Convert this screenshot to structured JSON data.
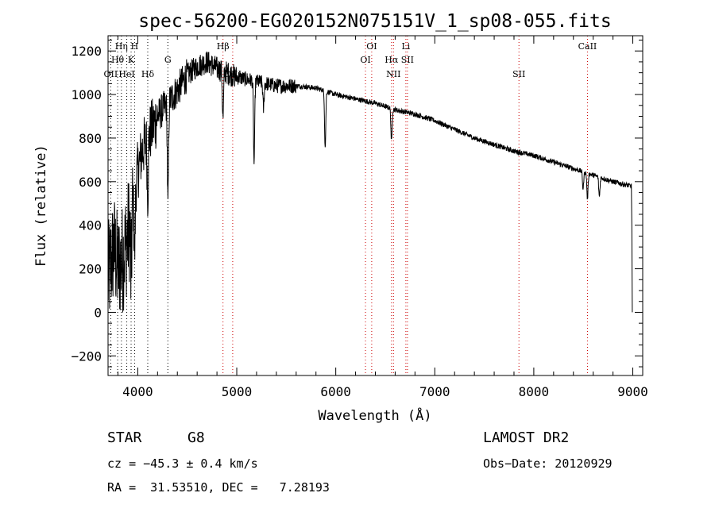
{
  "chart_data": {
    "type": "line",
    "title": "spec-56200-EG020152N075151V_1_sp08-055.fits",
    "xlabel": "Wavelength (Å)",
    "ylabel": "Flux (relative)",
    "xlim": [
      3700,
      9100
    ],
    "ylim": [
      -290,
      1270
    ],
    "xticks": [
      4000,
      5000,
      6000,
      7000,
      8000,
      9000
    ],
    "yticks": [
      -200,
      0,
      200,
      400,
      600,
      800,
      1000,
      1200
    ],
    "spectrum_anchor_points": [
      [
        3700,
        150
      ],
      [
        3760,
        300
      ],
      [
        3800,
        200
      ],
      [
        3850,
        250
      ],
      [
        3900,
        350
      ],
      [
        3950,
        500
      ],
      [
        4000,
        650
      ],
      [
        4050,
        750
      ],
      [
        4100,
        800
      ],
      [
        4150,
        850
      ],
      [
        4200,
        900
      ],
      [
        4300,
        960
      ],
      [
        4400,
        1020
      ],
      [
        4500,
        1090
      ],
      [
        4600,
        1130
      ],
      [
        4700,
        1150
      ],
      [
        4800,
        1120
      ],
      [
        4900,
        1100
      ],
      [
        5000,
        1080
      ],
      [
        5200,
        1060
      ],
      [
        5400,
        1040
      ],
      [
        5600,
        1040
      ],
      [
        5800,
        1030
      ],
      [
        6000,
        1000
      ],
      [
        6200,
        980
      ],
      [
        6400,
        960
      ],
      [
        6600,
        930
      ],
      [
        6800,
        910
      ],
      [
        7000,
        880
      ],
      [
        7200,
        840
      ],
      [
        7400,
        800
      ],
      [
        7600,
        770
      ],
      [
        7800,
        740
      ],
      [
        8000,
        720
      ],
      [
        8200,
        690
      ],
      [
        8400,
        660
      ],
      [
        8600,
        630
      ],
      [
        8800,
        600
      ],
      [
        8980,
        580
      ]
    ],
    "absorption_features": [
      {
        "x": 3933,
        "depth": 300
      },
      {
        "x": 3968,
        "depth": 280
      },
      {
        "x": 4101,
        "depth": 250
      },
      {
        "x": 4305,
        "depth": 480
      },
      {
        "x": 4861,
        "depth": 220
      },
      {
        "x": 5175,
        "depth": 380
      },
      {
        "x": 5270,
        "depth": 120
      },
      {
        "x": 5893,
        "depth": 260
      },
      {
        "x": 6563,
        "depth": 150
      },
      {
        "x": 8498,
        "depth": 80
      },
      {
        "x": 8542,
        "depth": 120
      },
      {
        "x": 8662,
        "depth": 90
      }
    ],
    "line_markers": [
      {
        "label": "Hη",
        "x": 3835,
        "row": 1
      },
      {
        "label": "H",
        "x": 3968,
        "row": 1
      },
      {
        "label": "Hθ",
        "x": 3797,
        "row": 2
      },
      {
        "label": "K",
        "x": 3933,
        "row": 2
      },
      {
        "label": "OII",
        "x": 3727,
        "row": 3
      },
      {
        "label": "HeI",
        "x": 3889,
        "row": 3
      },
      {
        "label": "Hδ",
        "x": 4101,
        "row": 3
      },
      {
        "label": "G",
        "x": 4304,
        "row": 2
      },
      {
        "label": "Hβ",
        "x": 4861,
        "row": 1
      },
      {
        "label": "OIII",
        "x": 4959,
        "row": 3
      },
      {
        "label": "OI",
        "x": 6363,
        "row": 1
      },
      {
        "label": "OI",
        "x": 6300,
        "row": 2
      },
      {
        "label": "Li",
        "x": 6708,
        "row": 1
      },
      {
        "label": "Hα",
        "x": 6563,
        "row": 2
      },
      {
        "label": "SII",
        "x": 6724,
        "row": 2
      },
      {
        "label": "NII",
        "x": 6583,
        "row": 3
      },
      {
        "label": "SII",
        "x": 7850,
        "row": 3
      },
      {
        "label": "CaII",
        "x": 8542,
        "row": 1
      }
    ],
    "grid": false
  },
  "info": {
    "class": "STAR",
    "subclass": "G8",
    "redshift": "cz = −45.3 ± 0.4 km/s",
    "coords": "RA =  31.53510, DEC =   7.28193",
    "survey": "LAMOST DR2",
    "obs_date": "Obs−Date: 20120929"
  },
  "colors": {
    "line": "#000000",
    "marker": "#cc0000",
    "marker_black": "#000000"
  }
}
